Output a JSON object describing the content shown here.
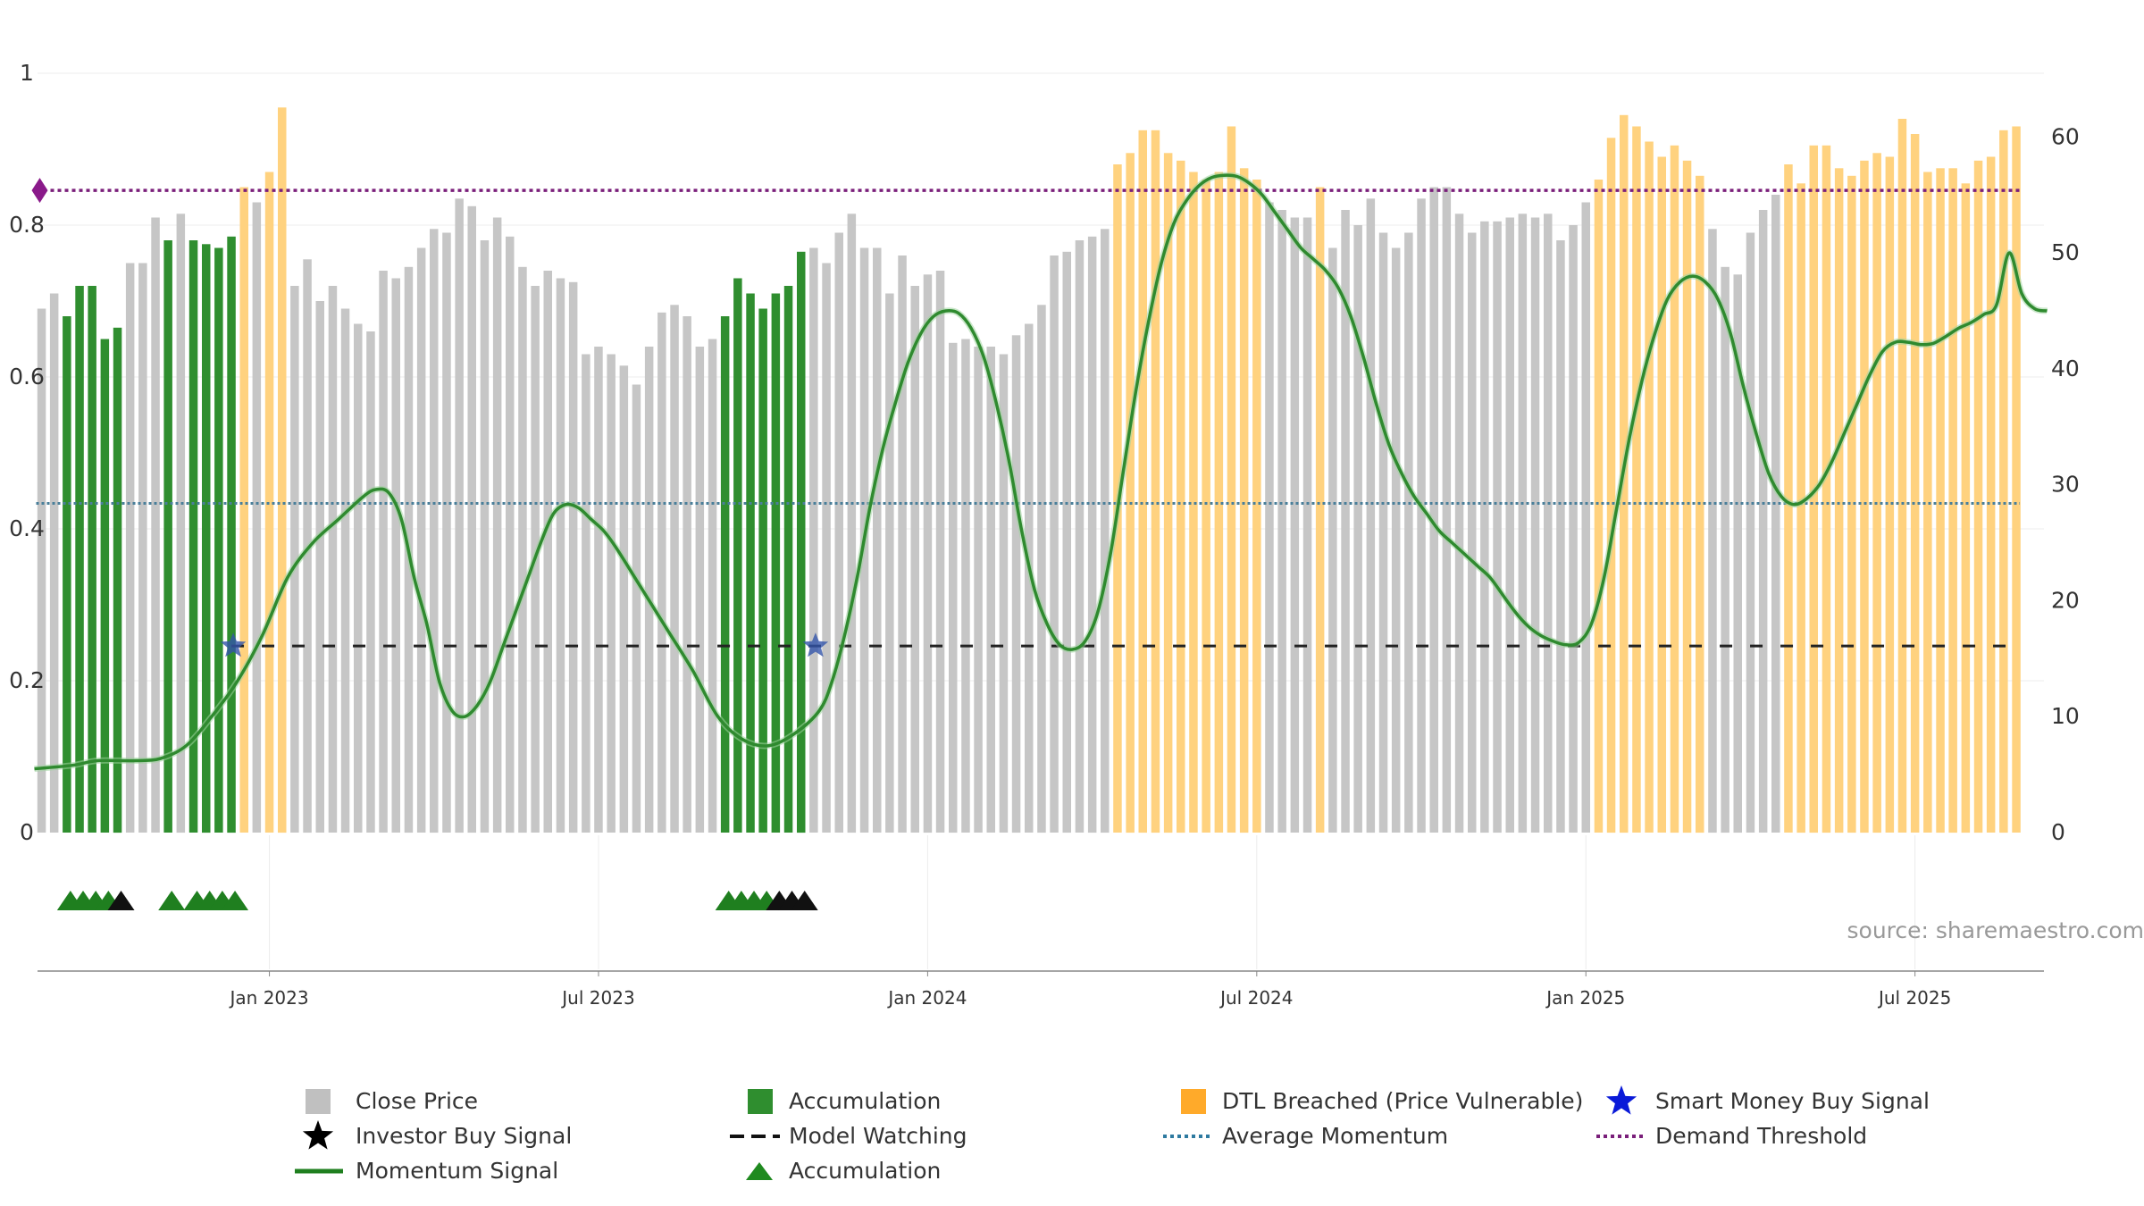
{
  "chart_data": {
    "type": "bar",
    "source_text": "source: sharemaestro.com",
    "left_axis": {
      "min": 0,
      "max": 1,
      "ticks": [
        "0",
        "0.2",
        "0.4",
        "0.6",
        "0.8",
        "1"
      ],
      "tick_values": [
        0,
        0.2,
        0.4,
        0.6,
        0.8,
        1
      ]
    },
    "right_axis": {
      "min": 0,
      "max": 65.5,
      "ticks": [
        "0",
        "10",
        "20",
        "30",
        "40",
        "50",
        "60"
      ],
      "tick_values": [
        0,
        10,
        20,
        30,
        40,
        50,
        60
      ]
    },
    "x_axis": {
      "ticks": [
        {
          "label": "Jan 2023",
          "week": 18
        },
        {
          "label": "Jul 2023",
          "week": 44
        },
        {
          "label": "Jan 2024",
          "week": 70
        },
        {
          "label": "Jul 2024",
          "week": 96
        },
        {
          "label": "Jan 2025",
          "week": 122
        },
        {
          "label": "Jul 2025",
          "week": 148
        }
      ]
    },
    "grid": true,
    "colors": {
      "close": "#c6c6c6",
      "accumulation": "#2f8e2f",
      "dtl": "#ffd27f",
      "momentum": "#2f8a2f",
      "momentum_late": "#7a9a1a",
      "watching": "#222222",
      "average": "#4a7f9a",
      "demand": "#7a1f7a",
      "smart_star": "#3355aa",
      "marker_green": "#1f7f1f",
      "marker_black": "#111111"
    },
    "bars": [
      {
        "v": 0.69,
        "c": "g"
      },
      {
        "v": 0.71,
        "c": "g"
      },
      {
        "v": 0.68,
        "c": "a"
      },
      {
        "v": 0.72,
        "c": "a"
      },
      {
        "v": 0.72,
        "c": "a"
      },
      {
        "v": 0.65,
        "c": "a"
      },
      {
        "v": 0.665,
        "c": "a"
      },
      {
        "v": 0.75,
        "c": "g"
      },
      {
        "v": 0.75,
        "c": "g"
      },
      {
        "v": 0.81,
        "c": "g"
      },
      {
        "v": 0.78,
        "c": "a"
      },
      {
        "v": 0.815,
        "c": "g"
      },
      {
        "v": 0.78,
        "c": "a"
      },
      {
        "v": 0.775,
        "c": "a"
      },
      {
        "v": 0.77,
        "c": "a"
      },
      {
        "v": 0.785,
        "c": "a"
      },
      {
        "v": 0.85,
        "c": "d"
      },
      {
        "v": 0.83,
        "c": "g"
      },
      {
        "v": 0.87,
        "c": "d"
      },
      {
        "v": 0.955,
        "c": "d"
      },
      {
        "v": 0.72,
        "c": "g"
      },
      {
        "v": 0.755,
        "c": "g"
      },
      {
        "v": 0.7,
        "c": "g"
      },
      {
        "v": 0.72,
        "c": "g"
      },
      {
        "v": 0.69,
        "c": "g"
      },
      {
        "v": 0.67,
        "c": "g"
      },
      {
        "v": 0.66,
        "c": "g"
      },
      {
        "v": 0.74,
        "c": "g"
      },
      {
        "v": 0.73,
        "c": "g"
      },
      {
        "v": 0.745,
        "c": "g"
      },
      {
        "v": 0.77,
        "c": "g"
      },
      {
        "v": 0.795,
        "c": "g"
      },
      {
        "v": 0.79,
        "c": "g"
      },
      {
        "v": 0.835,
        "c": "g"
      },
      {
        "v": 0.825,
        "c": "g"
      },
      {
        "v": 0.78,
        "c": "g"
      },
      {
        "v": 0.81,
        "c": "g"
      },
      {
        "v": 0.785,
        "c": "g"
      },
      {
        "v": 0.745,
        "c": "g"
      },
      {
        "v": 0.72,
        "c": "g"
      },
      {
        "v": 0.74,
        "c": "g"
      },
      {
        "v": 0.73,
        "c": "g"
      },
      {
        "v": 0.725,
        "c": "g"
      },
      {
        "v": 0.63,
        "c": "g"
      },
      {
        "v": 0.64,
        "c": "g"
      },
      {
        "v": 0.63,
        "c": "g"
      },
      {
        "v": 0.615,
        "c": "g"
      },
      {
        "v": 0.59,
        "c": "g"
      },
      {
        "v": 0.64,
        "c": "g"
      },
      {
        "v": 0.685,
        "c": "g"
      },
      {
        "v": 0.695,
        "c": "g"
      },
      {
        "v": 0.68,
        "c": "g"
      },
      {
        "v": 0.64,
        "c": "g"
      },
      {
        "v": 0.65,
        "c": "g"
      },
      {
        "v": 0.68,
        "c": "a"
      },
      {
        "v": 0.73,
        "c": "a"
      },
      {
        "v": 0.71,
        "c": "a"
      },
      {
        "v": 0.69,
        "c": "a"
      },
      {
        "v": 0.71,
        "c": "a"
      },
      {
        "v": 0.72,
        "c": "a"
      },
      {
        "v": 0.765,
        "c": "a"
      },
      {
        "v": 0.77,
        "c": "g"
      },
      {
        "v": 0.75,
        "c": "g"
      },
      {
        "v": 0.79,
        "c": "g"
      },
      {
        "v": 0.815,
        "c": "g"
      },
      {
        "v": 0.77,
        "c": "g"
      },
      {
        "v": 0.77,
        "c": "g"
      },
      {
        "v": 0.71,
        "c": "g"
      },
      {
        "v": 0.76,
        "c": "g"
      },
      {
        "v": 0.72,
        "c": "g"
      },
      {
        "v": 0.735,
        "c": "g"
      },
      {
        "v": 0.74,
        "c": "g"
      },
      {
        "v": 0.645,
        "c": "g"
      },
      {
        "v": 0.65,
        "c": "g"
      },
      {
        "v": 0.64,
        "c": "g"
      },
      {
        "v": 0.64,
        "c": "g"
      },
      {
        "v": 0.63,
        "c": "g"
      },
      {
        "v": 0.655,
        "c": "g"
      },
      {
        "v": 0.67,
        "c": "g"
      },
      {
        "v": 0.695,
        "c": "g"
      },
      {
        "v": 0.76,
        "c": "g"
      },
      {
        "v": 0.765,
        "c": "g"
      },
      {
        "v": 0.78,
        "c": "g"
      },
      {
        "v": 0.785,
        "c": "g"
      },
      {
        "v": 0.795,
        "c": "g"
      },
      {
        "v": 0.88,
        "c": "d"
      },
      {
        "v": 0.895,
        "c": "d"
      },
      {
        "v": 0.925,
        "c": "d"
      },
      {
        "v": 0.925,
        "c": "d"
      },
      {
        "v": 0.895,
        "c": "d"
      },
      {
        "v": 0.885,
        "c": "d"
      },
      {
        "v": 0.87,
        "c": "d"
      },
      {
        "v": 0.86,
        "c": "d"
      },
      {
        "v": 0.87,
        "c": "d"
      },
      {
        "v": 0.93,
        "c": "d"
      },
      {
        "v": 0.875,
        "c": "d"
      },
      {
        "v": 0.86,
        "c": "d"
      },
      {
        "v": 0.83,
        "c": "g"
      },
      {
        "v": 0.82,
        "c": "g"
      },
      {
        "v": 0.81,
        "c": "g"
      },
      {
        "v": 0.81,
        "c": "g"
      },
      {
        "v": 0.85,
        "c": "d"
      },
      {
        "v": 0.77,
        "c": "g"
      },
      {
        "v": 0.82,
        "c": "g"
      },
      {
        "v": 0.8,
        "c": "g"
      },
      {
        "v": 0.835,
        "c": "g"
      },
      {
        "v": 0.79,
        "c": "g"
      },
      {
        "v": 0.77,
        "c": "g"
      },
      {
        "v": 0.79,
        "c": "g"
      },
      {
        "v": 0.835,
        "c": "g"
      },
      {
        "v": 0.85,
        "c": "g"
      },
      {
        "v": 0.85,
        "c": "g"
      },
      {
        "v": 0.815,
        "c": "g"
      },
      {
        "v": 0.79,
        "c": "g"
      },
      {
        "v": 0.805,
        "c": "g"
      },
      {
        "v": 0.805,
        "c": "g"
      },
      {
        "v": 0.81,
        "c": "g"
      },
      {
        "v": 0.815,
        "c": "g"
      },
      {
        "v": 0.81,
        "c": "g"
      },
      {
        "v": 0.815,
        "c": "g"
      },
      {
        "v": 0.78,
        "c": "g"
      },
      {
        "v": 0.8,
        "c": "g"
      },
      {
        "v": 0.83,
        "c": "g"
      },
      {
        "v": 0.86,
        "c": "d"
      },
      {
        "v": 0.915,
        "c": "d"
      },
      {
        "v": 0.945,
        "c": "d"
      },
      {
        "v": 0.93,
        "c": "d"
      },
      {
        "v": 0.91,
        "c": "d"
      },
      {
        "v": 0.89,
        "c": "d"
      },
      {
        "v": 0.905,
        "c": "d"
      },
      {
        "v": 0.885,
        "c": "d"
      },
      {
        "v": 0.865,
        "c": "d"
      },
      {
        "v": 0.795,
        "c": "g"
      },
      {
        "v": 0.745,
        "c": "g"
      },
      {
        "v": 0.735,
        "c": "g"
      },
      {
        "v": 0.79,
        "c": "g"
      },
      {
        "v": 0.82,
        "c": "g"
      },
      {
        "v": 0.84,
        "c": "g"
      },
      {
        "v": 0.88,
        "c": "d"
      },
      {
        "v": 0.855,
        "c": "d"
      },
      {
        "v": 0.905,
        "c": "d"
      },
      {
        "v": 0.905,
        "c": "d"
      },
      {
        "v": 0.875,
        "c": "d"
      },
      {
        "v": 0.865,
        "c": "d"
      },
      {
        "v": 0.885,
        "c": "d"
      },
      {
        "v": 0.895,
        "c": "d"
      },
      {
        "v": 0.89,
        "c": "d"
      },
      {
        "v": 0.94,
        "c": "d"
      },
      {
        "v": 0.92,
        "c": "d"
      },
      {
        "v": 0.87,
        "c": "d"
      },
      {
        "v": 0.875,
        "c": "d"
      },
      {
        "v": 0.875,
        "c": "d"
      },
      {
        "v": 0.855,
        "c": "d"
      },
      {
        "v": 0.885,
        "c": "d"
      },
      {
        "v": 0.89,
        "c": "d"
      },
      {
        "v": 0.925,
        "c": "d"
      },
      {
        "v": 0.93,
        "c": "d"
      }
    ],
    "momentum": [
      [
        0,
        5.5
      ],
      [
        3,
        5.8
      ],
      [
        5,
        6.2
      ],
      [
        8,
        6.2
      ],
      [
        10,
        6.4
      ],
      [
        12,
        7.5
      ],
      [
        14,
        10
      ],
      [
        16,
        13
      ],
      [
        18,
        17
      ],
      [
        20,
        22
      ],
      [
        22,
        25
      ],
      [
        24,
        27
      ],
      [
        26,
        29
      ],
      [
        27,
        29.6
      ],
      [
        28,
        29.3
      ],
      [
        29,
        27
      ],
      [
        30,
        22
      ],
      [
        31,
        18
      ],
      [
        32,
        13
      ],
      [
        33,
        10.5
      ],
      [
        34,
        10
      ],
      [
        35,
        11
      ],
      [
        36,
        13
      ],
      [
        37,
        16
      ],
      [
        38,
        19
      ],
      [
        39,
        22
      ],
      [
        40,
        25
      ],
      [
        41,
        27.5
      ],
      [
        42,
        28.3
      ],
      [
        43,
        28
      ],
      [
        44,
        27
      ],
      [
        45,
        26
      ],
      [
        46,
        24.5
      ],
      [
        48,
        21
      ],
      [
        50,
        17.5
      ],
      [
        52,
        14
      ],
      [
        54,
        10
      ],
      [
        56,
        8
      ],
      [
        58,
        7.5
      ],
      [
        60,
        8.5
      ],
      [
        62,
        10.5
      ],
      [
        63,
        13
      ],
      [
        64,
        17
      ],
      [
        65,
        22
      ],
      [
        66,
        28
      ],
      [
        67,
        33
      ],
      [
        68,
        37
      ],
      [
        69,
        40.5
      ],
      [
        70,
        43
      ],
      [
        71,
        44.5
      ],
      [
        72,
        45
      ],
      [
        73,
        44.8
      ],
      [
        74,
        43.5
      ],
      [
        75,
        41
      ],
      [
        76,
        37
      ],
      [
        77,
        32
      ],
      [
        78,
        26
      ],
      [
        79,
        21
      ],
      [
        80,
        18
      ],
      [
        81,
        16.2
      ],
      [
        82,
        15.8
      ],
      [
        83,
        16.5
      ],
      [
        84,
        19
      ],
      [
        85,
        24
      ],
      [
        86,
        31
      ],
      [
        87,
        38
      ],
      [
        88,
        44
      ],
      [
        89,
        49
      ],
      [
        90,
        52.5
      ],
      [
        91,
        54.5
      ],
      [
        92,
        55.8
      ],
      [
        93,
        56.5
      ],
      [
        94,
        56.7
      ],
      [
        95,
        56.6
      ],
      [
        96,
        56
      ],
      [
        97,
        55
      ],
      [
        98,
        53.5
      ],
      [
        99,
        52
      ],
      [
        100,
        50.5
      ],
      [
        101,
        49.5
      ],
      [
        102,
        48.5
      ],
      [
        103,
        47
      ],
      [
        104,
        44.5
      ],
      [
        105,
        41
      ],
      [
        106,
        37
      ],
      [
        107,
        33.5
      ],
      [
        108,
        31
      ],
      [
        109,
        29
      ],
      [
        110,
        27.5
      ],
      [
        111,
        26
      ],
      [
        112,
        25
      ],
      [
        113,
        24
      ],
      [
        114,
        23
      ],
      [
        115,
        22
      ],
      [
        116,
        20.5
      ],
      [
        117,
        19
      ],
      [
        118,
        17.8
      ],
      [
        119,
        17
      ],
      [
        120,
        16.5
      ],
      [
        121,
        16.2
      ],
      [
        122,
        16.4
      ],
      [
        123,
        18
      ],
      [
        124,
        22
      ],
      [
        125,
        28
      ],
      [
        126,
        34
      ],
      [
        127,
        39
      ],
      [
        128,
        43
      ],
      [
        129,
        46
      ],
      [
        130,
        47.5
      ],
      [
        131,
        48
      ],
      [
        132,
        47.5
      ],
      [
        133,
        46
      ],
      [
        134,
        43
      ],
      [
        135,
        38.5
      ],
      [
        136,
        34.5
      ],
      [
        137,
        31
      ],
      [
        138,
        29
      ],
      [
        139,
        28.3
      ],
      [
        140,
        28.8
      ],
      [
        141,
        30
      ],
      [
        142,
        32
      ],
      [
        143,
        34.5
      ],
      [
        144,
        37
      ],
      [
        145,
        39.5
      ],
      [
        146,
        41.5
      ],
      [
        147,
        42.3
      ],
      [
        148,
        42.3
      ],
      [
        149,
        42.1
      ],
      [
        150,
        42.2
      ],
      [
        151,
        42.8
      ],
      [
        152,
        43.5
      ],
      [
        153,
        44
      ],
      [
        154,
        44.7
      ],
      [
        155,
        45.5
      ],
      [
        156,
        50
      ],
      [
        157,
        46.5
      ],
      [
        158,
        45.2
      ],
      [
        159,
        45
      ]
    ],
    "model_watching": 16.1,
    "average_momentum": 28.4,
    "demand_threshold": 55.4,
    "smart_money_weeks": [
      15,
      61
    ],
    "markers": [
      {
        "week": 2,
        "c": "g"
      },
      {
        "week": 3,
        "c": "g"
      },
      {
        "week": 4,
        "c": "g"
      },
      {
        "week": 5,
        "c": "g"
      },
      {
        "week": 6,
        "c": "k"
      },
      {
        "week": 10,
        "c": "g"
      },
      {
        "week": 12,
        "c": "g"
      },
      {
        "week": 13,
        "c": "g"
      },
      {
        "week": 14,
        "c": "g"
      },
      {
        "week": 15,
        "c": "g"
      },
      {
        "week": 54,
        "c": "g"
      },
      {
        "week": 55,
        "c": "g"
      },
      {
        "week": 56,
        "c": "g"
      },
      {
        "week": 57,
        "c": "g"
      },
      {
        "week": 58,
        "c": "k"
      },
      {
        "week": 59,
        "c": "k"
      },
      {
        "week": 60,
        "c": "k"
      }
    ]
  },
  "legend": {
    "items": [
      {
        "label": "Close Price",
        "sym": "square-gray"
      },
      {
        "label": "Accumulation",
        "sym": "square-green"
      },
      {
        "label": "DTL Breached (Price Vulnerable)",
        "sym": "square-orange"
      },
      {
        "label": "Smart Money Buy Signal",
        "sym": "star-blue"
      },
      {
        "label": "Investor Buy Signal",
        "sym": "star-black"
      },
      {
        "label": "Model Watching",
        "sym": "dash-black"
      },
      {
        "label": "Average Momentum",
        "sym": "dot-blue"
      },
      {
        "label": "Demand Threshold",
        "sym": "dot-purple"
      },
      {
        "label": "Momentum Signal",
        "sym": "line-green"
      },
      {
        "label": "Accumulation",
        "sym": "triangle-green"
      }
    ]
  }
}
